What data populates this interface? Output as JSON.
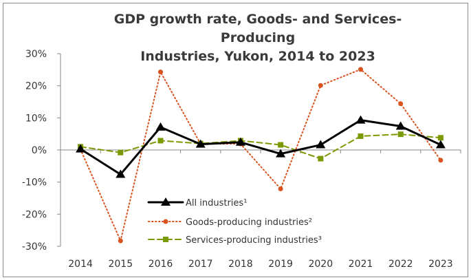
{
  "chart_data": {
    "type": "line",
    "title_lines": [
      "GDP growth rate, Goods- and Services-Producing",
      "Industries, Yukon, 2014 to 2023"
    ],
    "xlabel": "",
    "ylabel": "",
    "categories": [
      "2014",
      "2015",
      "2016",
      "2017",
      "2018",
      "2019",
      "2020",
      "2021",
      "2022",
      "2023"
    ],
    "y_ticks": [
      30,
      20,
      10,
      0,
      -10,
      -20,
      -30
    ],
    "y_tick_labels": [
      "30%",
      "20%",
      "10%",
      "0%",
      "-10%",
      "-20%",
      "-30%"
    ],
    "ylim": [
      -30,
      30
    ],
    "grid": false,
    "legend_position": "lower-center",
    "series": [
      {
        "name": "All industries¹",
        "values": [
          0.3,
          -7.6,
          7.1,
          1.8,
          2.4,
          -1.2,
          1.6,
          9.3,
          7.4,
          1.6
        ],
        "color": "#000000",
        "style": "solid",
        "marker": "triangle"
      },
      {
        "name": "Goods-producing industries²",
        "values": [
          0.2,
          -28.3,
          24.3,
          1.9,
          1.9,
          -12.1,
          20.1,
          25.1,
          14.4,
          -3.2
        ],
        "color": "#d9531e",
        "style": "dotted",
        "marker": "circle"
      },
      {
        "name": "Services-producing industries³",
        "values": [
          1.0,
          -0.8,
          2.9,
          2.0,
          2.9,
          1.6,
          -2.7,
          4.3,
          4.9,
          3.8
        ],
        "color": "#7a9a01",
        "style": "dashed",
        "marker": "square"
      }
    ]
  }
}
